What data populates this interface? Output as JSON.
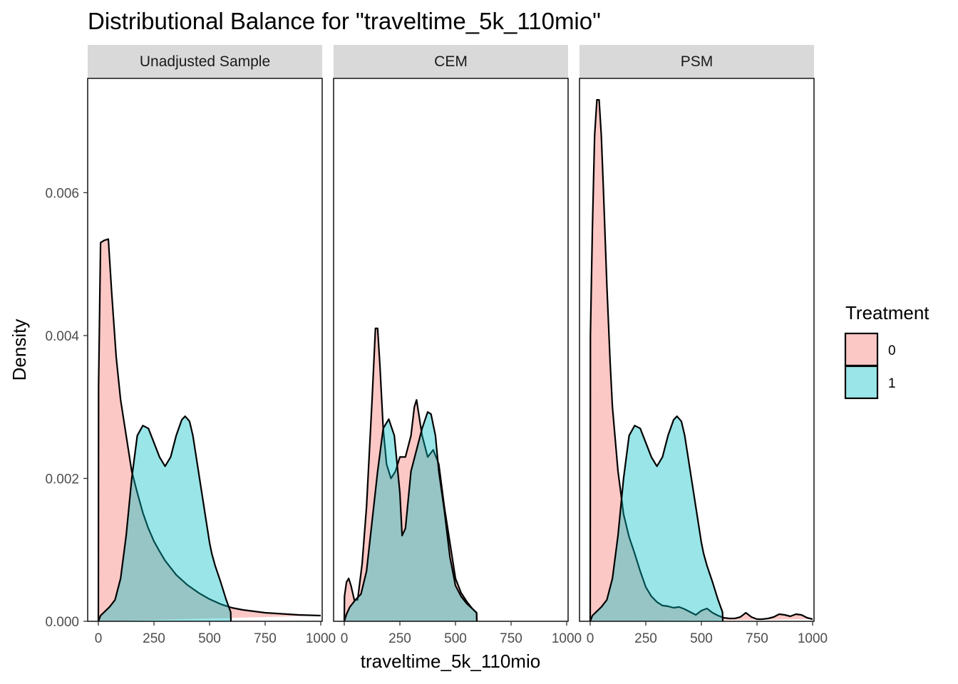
{
  "chart_data": {
    "type": "area",
    "title": "Distributional Balance for \"traveltime_5k_110mio\"",
    "xlabel": "traveltime_5k_110mio",
    "ylabel": "Density",
    "xlim": [
      0,
      1000
    ],
    "ylim": [
      0,
      0.0076
    ],
    "x_ticks": [
      0,
      250,
      500,
      750,
      1000
    ],
    "y_ticks": [
      0,
      0.002,
      0.004,
      0.006
    ],
    "x_tick_labels": [
      "0",
      "250",
      "500",
      "750",
      "1000"
    ],
    "y_tick_labels": [
      "0.000",
      "0.002",
      "0.004",
      "0.006"
    ],
    "legend": {
      "title": "Treatment",
      "position": "right",
      "entries": [
        {
          "label": "0",
          "color": "#F8766D"
        },
        {
          "label": "1",
          "color": "#00BFC4"
        }
      ]
    },
    "fill_opacity": 0.4,
    "panels": [
      {
        "label": "Unadjusted Sample",
        "series": [
          {
            "name": "0",
            "color": "#F8766D",
            "x": [
              0,
              1,
              10,
              25,
              45,
              60,
              80,
              100,
              125,
              150,
              175,
              200,
              225,
              250,
              275,
              300,
              350,
              400,
              450,
              500,
              550,
              600,
              650,
              700,
              750,
              800,
              850,
              900,
              950,
              1000
            ],
            "y": [
              0,
              0.0033,
              0.0053,
              0.00533,
              0.00535,
              0.0046,
              0.0037,
              0.0031,
              0.0026,
              0.0021,
              0.0018,
              0.00152,
              0.0013,
              0.00112,
              0.00098,
              0.00085,
              0.00065,
              0.00051,
              0.0004,
              0.00031,
              0.00024,
              0.00019,
              0.00016,
              0.00014,
              0.00012,
              0.00011,
              0.0001,
              9e-05,
              8.5e-05,
              8e-05
            ]
          },
          {
            "name": "1",
            "color": "#00BFC4",
            "x": [
              0,
              10,
              50,
              75,
              100,
              125,
              150,
              175,
              200,
              225,
              250,
              275,
              300,
              325,
              350,
              375,
              390,
              410,
              425,
              450,
              475,
              500,
              510,
              525,
              550,
              575,
              595,
              596
            ],
            "y": [
              0,
              8e-05,
              0.0002,
              0.0003,
              0.0006,
              0.0012,
              0.002,
              0.0026,
              0.00274,
              0.0027,
              0.0025,
              0.0023,
              0.00217,
              0.0023,
              0.0026,
              0.00282,
              0.00287,
              0.0028,
              0.0026,
              0.0021,
              0.0016,
              0.0011,
              0.00095,
              0.00078,
              0.00055,
              0.0003,
              0.00013,
              0
            ]
          }
        ]
      },
      {
        "label": "CEM",
        "series": [
          {
            "name": "0",
            "color": "#F8766D",
            "x": [
              0,
              1,
              10,
              20,
              30,
              45,
              60,
              80,
              100,
              125,
              140,
              150,
              160,
              175,
              190,
              210,
              230,
              250,
              275,
              300,
              315,
              325,
              335,
              350,
              375,
              400,
              425,
              450,
              475,
              500,
              525,
              550,
              575,
              595,
              596
            ],
            "y": [
              0,
              0.00035,
              0.00055,
              0.0006,
              0.0005,
              0.0003,
              0.0003,
              0.0008,
              0.0016,
              0.0031,
              0.0041,
              0.0041,
              0.0036,
              0.0027,
              0.0022,
              0.002,
              0.0021,
              0.0023,
              0.0023,
              0.0026,
              0.003,
              0.0031,
              0.0029,
              0.0026,
              0.0023,
              0.0024,
              0.0022,
              0.0016,
              0.0011,
              0.0006,
              0.0004,
              0.00028,
              0.00018,
              0.00012,
              0
            ]
          },
          {
            "name": "1",
            "color": "#00BFC4",
            "x": [
              0,
              10,
              25,
              50,
              75,
              100,
              125,
              150,
              175,
              200,
              225,
              250,
              260,
              275,
              300,
              325,
              350,
              375,
              390,
              410,
              425,
              450,
              475,
              500,
              525,
              550,
              575,
              595,
              596
            ],
            "y": [
              0,
              0.0001,
              0.0002,
              0.0003,
              0.00038,
              0.0007,
              0.0014,
              0.0021,
              0.0027,
              0.00283,
              0.0026,
              0.0018,
              0.0012,
              0.0013,
              0.0021,
              0.0024,
              0.0027,
              0.00293,
              0.0029,
              0.0026,
              0.0021,
              0.00155,
              0.0009,
              0.0005,
              0.00035,
              0.00025,
              0.00018,
              0.00012,
              0
            ]
          }
        ]
      },
      {
        "label": "PSM",
        "series": [
          {
            "name": "0",
            "color": "#F8766D",
            "x": [
              0,
              1,
              10,
              20,
              30,
              40,
              50,
              60,
              75,
              90,
              100,
              125,
              150,
              175,
              200,
              225,
              250,
              275,
              300,
              325,
              350,
              375,
              400,
              425,
              450,
              475,
              500,
              525,
              550,
              575,
              600,
              625,
              650,
              675,
              700,
              725,
              750,
              775,
              800,
              825,
              850,
              875,
              900,
              925,
              950,
              975,
              1000
            ],
            "y": [
              0,
              0.004,
              0.0055,
              0.0068,
              0.0073,
              0.0073,
              0.0068,
              0.006,
              0.0047,
              0.0036,
              0.003,
              0.0021,
              0.0015,
              0.00118,
              0.00095,
              0.0007,
              0.00048,
              0.00035,
              0.00027,
              0.00022,
              0.00021,
              0.00019,
              0.0002,
              0.00017,
              0.00013,
              9e-05,
              0.00015,
              0.00018,
              0.00012,
              8e-05,
              5e-05,
              4e-05,
              4e-05,
              6e-05,
              0.00012,
              6e-05,
              3e-05,
              3e-05,
              4e-05,
              6e-05,
              0.0001,
              9e-05,
              7e-05,
              0.0001,
              9e-05,
              5e-05,
              3e-05
            ]
          },
          {
            "name": "1",
            "color": "#00BFC4",
            "x": [
              0,
              10,
              50,
              75,
              100,
              125,
              150,
              175,
              200,
              225,
              250,
              275,
              300,
              325,
              350,
              375,
              390,
              410,
              425,
              450,
              475,
              500,
              510,
              525,
              550,
              575,
              595,
              596
            ],
            "y": [
              0,
              8e-05,
              0.0002,
              0.0003,
              0.0006,
              0.0012,
              0.002,
              0.0026,
              0.00274,
              0.0027,
              0.0025,
              0.0023,
              0.00217,
              0.0023,
              0.0026,
              0.00282,
              0.00287,
              0.0028,
              0.0026,
              0.0021,
              0.0016,
              0.0011,
              0.00095,
              0.00078,
              0.00055,
              0.0003,
              0.00013,
              0
            ]
          }
        ]
      }
    ]
  }
}
